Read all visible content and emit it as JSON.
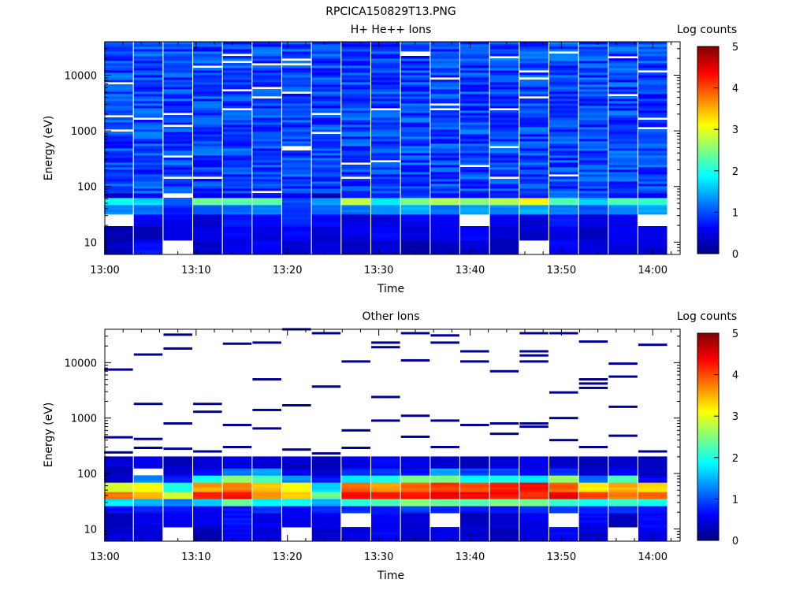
{
  "figure": {
    "title": "RPCICA150829T13.PNG"
  },
  "chart_data": [
    {
      "type": "heatmap",
      "title": "H+ He++ Ions",
      "xlabel": "Time",
      "ylabel": "Energy (eV)",
      "x_ticks": [
        "13:00",
        "13:10",
        "13:20",
        "13:30",
        "13:40",
        "13:50",
        "14:00"
      ],
      "x_range_minutes": [
        0,
        63
      ],
      "y_ticks": [
        "10",
        "100",
        "1000",
        "10000"
      ],
      "y_scale": "log",
      "y_range": [
        6,
        40000
      ],
      "colorbar": {
        "label": "Log counts",
        "ticks": [
          "0",
          "1",
          "2",
          "3",
          "4",
          "5"
        ],
        "range": [
          0,
          5
        ],
        "colormap": "jet"
      },
      "time_bins_minutes": [
        1.5,
        4.75,
        8,
        11.25,
        14.5,
        17.75,
        21,
        24.25,
        27.5,
        30.75,
        34,
        37.25,
        40.5,
        43.75,
        47,
        50.25,
        53.5,
        56.75,
        60
      ],
      "level_bands_ev": [
        {
          "e_min": 6,
          "e_max": 11,
          "values": [
            0.3,
            0.7,
            null,
            0.4,
            0.5,
            0.6,
            0.4,
            0.5,
            0.3,
            0.4,
            0.2,
            0.3,
            0.4,
            0.3,
            null,
            0.6,
            0.4,
            0.5,
            0.4
          ]
        },
        {
          "e_min": 11,
          "e_max": 19,
          "values": [
            0.2,
            0.3,
            0.5,
            0.5,
            0.6,
            0.5,
            0.6,
            0.4,
            0.5,
            0.6,
            0.5,
            0.5,
            0.6,
            0.4,
            0.4,
            0.5,
            0.3,
            0.6,
            0.5
          ]
        },
        {
          "e_min": 19,
          "e_max": 33,
          "values": [
            null,
            0.6,
            0.6,
            0.4,
            0.7,
            0.6,
            0.8,
            0.6,
            0.5,
            0.5,
            0.6,
            0.6,
            null,
            0.6,
            0.4,
            0.7,
            0.5,
            0.5,
            null
          ]
        },
        {
          "e_min": 33,
          "e_max": 46,
          "values": [
            1.3,
            1.2,
            0.8,
            1.0,
            1.1,
            1.3,
            0.9,
            1.1,
            1.2,
            1.3,
            1.5,
            1.2,
            1.4,
            1.3,
            1.5,
            1.2,
            1.0,
            1.3,
            1.4
          ]
        },
        {
          "e_min": 46,
          "e_max": 62,
          "values": [
            1.9,
            1.7,
            1.0,
            2.4,
            2.3,
            2.4,
            1.0,
            1.4,
            2.9,
            1.8,
            2.5,
            2.7,
            2.6,
            2.8,
            3.1,
            2.3,
            1.6,
            2.2,
            2.1
          ]
        },
        {
          "e_min": 62,
          "e_max": 80,
          "values": [
            0.3,
            0.6,
            null,
            0.6,
            0.5,
            0.7,
            0.5,
            0.3,
            0.7,
            0.7,
            0.9,
            0.7,
            0.6,
            0.8,
            0.8,
            1.2,
            0.9,
            0.7,
            0.6
          ]
        }
      ]
    },
    {
      "type": "heatmap",
      "title": "Other Ions",
      "xlabel": "Time",
      "ylabel": "Energy (eV)",
      "x_ticks": [
        "13:00",
        "13:10",
        "13:20",
        "13:30",
        "13:40",
        "13:50",
        "14:00"
      ],
      "x_range_minutes": [
        0,
        63
      ],
      "y_ticks": [
        "10",
        "100",
        "1000",
        "10000"
      ],
      "y_scale": "log",
      "y_range": [
        6,
        40000
      ],
      "colorbar": {
        "label": "Log counts",
        "ticks": [
          "0",
          "1",
          "2",
          "3",
          "4",
          "5"
        ],
        "range": [
          0,
          5
        ],
        "colormap": "jet"
      },
      "time_bins_minutes": [
        1.5,
        4.75,
        8,
        11.25,
        14.5,
        17.75,
        21,
        24.25,
        27.5,
        30.75,
        34,
        37.25,
        40.5,
        43.75,
        47,
        50.25,
        53.5,
        56.75,
        60
      ],
      "level_bands_ev": [
        {
          "e_min": 6,
          "e_max": 11,
          "values": [
            0.4,
            0.5,
            null,
            0.3,
            0.6,
            0.5,
            null,
            0.4,
            0.5,
            0.6,
            0.4,
            0.5,
            0.4,
            0.3,
            0.5,
            0.6,
            0.4,
            null,
            0.5
          ]
        },
        {
          "e_min": 11,
          "e_max": 19,
          "values": [
            0.3,
            0.5,
            0.6,
            0.5,
            0.7,
            0.5,
            0.6,
            0.5,
            null,
            0.6,
            0.4,
            null,
            0.3,
            0.4,
            0.5,
            null,
            0.6,
            0.3,
            0.6
          ]
        },
        {
          "e_min": 19,
          "e_max": 26,
          "values": [
            0.6,
            0.8,
            0.7,
            0.6,
            0.7,
            0.9,
            0.6,
            0.8,
            0.8,
            0.7,
            0.9,
            0.8,
            0.7,
            0.7,
            0.8,
            0.9,
            0.7,
            0.8,
            0.7
          ]
        },
        {
          "e_min": 26,
          "e_max": 36,
          "values": [
            1.8,
            1.5,
            1.2,
            1.6,
            2.4,
            1.8,
            1.9,
            1.5,
            2.1,
            2.2,
            2.6,
            2.4,
            2.3,
            2.5,
            2.4,
            2.2,
            1.9,
            2.2,
            2.0
          ]
        },
        {
          "e_min": 36,
          "e_max": 48,
          "values": [
            3.8,
            3.5,
            2.9,
            4.2,
            4.3,
            3.7,
            3.3,
            2.4,
            4.4,
            4.2,
            4.3,
            4.5,
            4.4,
            4.3,
            4.2,
            4.4,
            4.0,
            3.8,
            3.9
          ]
        },
        {
          "e_min": 48,
          "e_max": 66,
          "values": [
            2.9,
            3.1,
            2.0,
            3.6,
            3.8,
            3.4,
            3.1,
            1.7,
            3.9,
            3.6,
            3.9,
            4.1,
            4.0,
            4.2,
            4.3,
            3.9,
            3.2,
            3.5,
            3.3
          ]
        },
        {
          "e_min": 66,
          "e_max": 90,
          "values": [
            0.4,
            1.3,
            0.7,
            2.0,
            2.6,
            2.2,
            1.3,
            0.7,
            1.8,
            2.0,
            2.4,
            2.4,
            1.8,
            2.0,
            1.8,
            2.6,
            1.2,
            2.2,
            0.6
          ]
        },
        {
          "e_min": 90,
          "e_max": 125,
          "values": [
            0.3,
            null,
            0.4,
            0.6,
            1.2,
            1.4,
            0.5,
            0.4,
            0.8,
            0.9,
            0.7,
            1.4,
            0.9,
            1.0,
            0.6,
            0.9,
            0.4,
            0.7,
            0.3
          ]
        },
        {
          "e_min": 125,
          "e_max": 200,
          "values": [
            0.4,
            0.5,
            0.3,
            0.4,
            0.5,
            0.4,
            0.4,
            0.3,
            0.5,
            0.6,
            0.5,
            0.4,
            0.3,
            0.4,
            0.5,
            0.4,
            0.3,
            0.4,
            0.3
          ]
        }
      ],
      "sparse_lines_ev": [
        {
          "t": 1.5,
          "e": [
            7500,
            450,
            240
          ]
        },
        {
          "t": 4.75,
          "e": [
            14000,
            1800,
            420,
            290
          ]
        },
        {
          "t": 8,
          "e": [
            32000,
            18000,
            800,
            280
          ]
        },
        {
          "t": 11.25,
          "e": [
            1800,
            1300,
            250
          ]
        },
        {
          "t": 14.5,
          "e": [
            22000,
            750,
            300
          ]
        },
        {
          "t": 17.75,
          "e": [
            23000,
            5000,
            1400,
            650
          ]
        },
        {
          "t": 21,
          "e": [
            40000,
            1700,
            270
          ]
        },
        {
          "t": 24.25,
          "e": [
            34000,
            3700,
            230
          ]
        },
        {
          "t": 27.5,
          "e": [
            10500,
            600,
            290
          ]
        },
        {
          "t": 30.75,
          "e": [
            23000,
            19000,
            2400,
            900
          ]
        },
        {
          "t": 34,
          "e": [
            34000,
            11000,
            1100,
            460
          ]
        },
        {
          "t": 37.25,
          "e": [
            31000,
            23000,
            900,
            300
          ]
        },
        {
          "t": 40.5,
          "e": [
            16000,
            10500,
            750
          ]
        },
        {
          "t": 43.75,
          "e": [
            7000,
            800,
            520
          ]
        },
        {
          "t": 47,
          "e": [
            34000,
            16000,
            13500,
            10500,
            800,
            700
          ]
        },
        {
          "t": 50.25,
          "e": [
            34000,
            2900,
            1000,
            400
          ]
        },
        {
          "t": 53.5,
          "e": [
            24000,
            5000,
            4200,
            3500,
            300
          ]
        },
        {
          "t": 56.75,
          "e": [
            9600,
            5600,
            1600,
            480
          ]
        },
        {
          "t": 60,
          "e": [
            21000,
            250
          ]
        }
      ]
    }
  ]
}
